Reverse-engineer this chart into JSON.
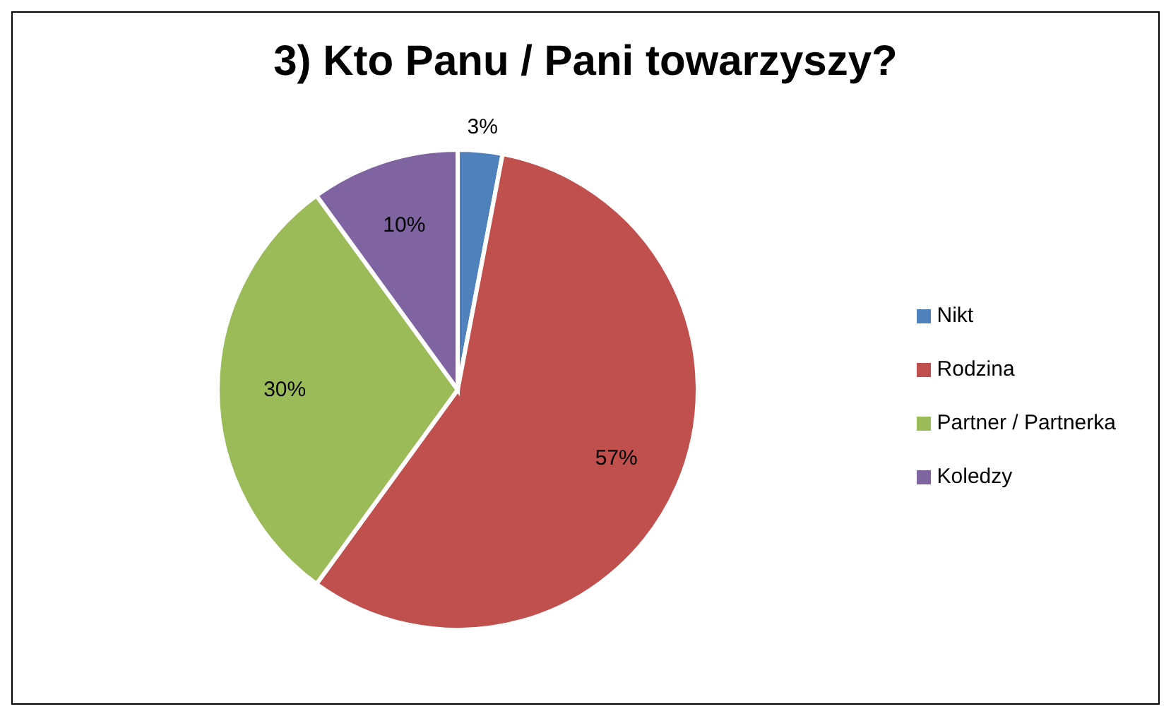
{
  "chart_data": {
    "type": "pie",
    "title": "3) Kto Panu / Pani towarzyszy?",
    "categories": [
      "Nikt",
      "Rodzina",
      "Partner / Partnerka",
      "Koledzy"
    ],
    "values": [
      3,
      57,
      30,
      10
    ],
    "colors": [
      "#4f81bd",
      "#c0504d",
      "#9bbb59",
      "#8064a2"
    ],
    "value_labels": [
      "3%",
      "57%",
      "30%",
      "10%"
    ],
    "legend": "right"
  }
}
